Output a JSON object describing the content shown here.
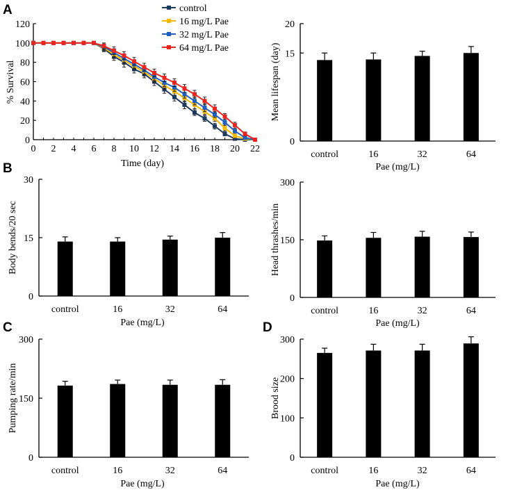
{
  "panel_letters": [
    "A",
    "B",
    "C",
    "D"
  ],
  "chart_data": [
    {
      "id": "survival",
      "type": "line",
      "title": "",
      "xlabel": "Time (day)",
      "ylabel": "% Survival",
      "xlim": [
        0,
        22
      ],
      "ylim": [
        0,
        120
      ],
      "xticks": [
        0,
        2,
        4,
        6,
        8,
        10,
        12,
        14,
        16,
        18,
        20,
        22
      ],
      "yticks": [
        0,
        20,
        40,
        60,
        80,
        100,
        120
      ],
      "legend_position": "top-center",
      "series": [
        {
          "name": "control",
          "color": "#1f3a5f",
          "x": [
            0,
            1,
            2,
            3,
            4,
            5,
            6,
            7,
            8,
            9,
            10,
            11,
            12,
            13,
            14,
            15,
            16,
            17,
            18,
            19,
            20,
            21,
            22
          ],
          "y": [
            100,
            100,
            100,
            100,
            100,
            100,
            100,
            94,
            86,
            80,
            73,
            68,
            60,
            52,
            44,
            36,
            28,
            22,
            14,
            6,
            1,
            0,
            0
          ],
          "err": [
            0,
            0,
            0,
            0,
            0,
            0,
            0,
            3,
            4,
            5,
            4,
            4,
            4,
            4,
            4,
            4,
            3,
            3,
            3,
            2,
            1,
            0,
            0
          ]
        },
        {
          "name": "16 mg/L Pae",
          "color": "#f5b800",
          "x": [
            0,
            1,
            2,
            3,
            4,
            5,
            6,
            7,
            8,
            9,
            10,
            11,
            12,
            13,
            14,
            15,
            16,
            17,
            18,
            19,
            20,
            21,
            22
          ],
          "y": [
            100,
            100,
            100,
            100,
            100,
            100,
            100,
            95,
            88,
            82,
            76,
            70,
            63,
            56,
            50,
            43,
            36,
            29,
            22,
            12,
            4,
            1,
            0
          ],
          "err": [
            0,
            0,
            0,
            0,
            0,
            0,
            0,
            3,
            4,
            4,
            4,
            4,
            4,
            4,
            4,
            4,
            4,
            3,
            3,
            3,
            2,
            1,
            0
          ]
        },
        {
          "name": "32 mg/L Pae",
          "color": "#1f5fbf",
          "x": [
            0,
            1,
            2,
            3,
            4,
            5,
            6,
            7,
            8,
            9,
            10,
            11,
            12,
            13,
            14,
            15,
            16,
            17,
            18,
            19,
            20,
            21,
            22
          ],
          "y": [
            100,
            100,
            100,
            100,
            100,
            100,
            100,
            96,
            90,
            84,
            78,
            72,
            65,
            59,
            54,
            47,
            40,
            33,
            26,
            18,
            9,
            2,
            0
          ],
          "err": [
            0,
            0,
            0,
            0,
            0,
            0,
            0,
            3,
            4,
            4,
            4,
            4,
            4,
            4,
            4,
            4,
            4,
            4,
            3,
            3,
            2,
            1,
            0
          ]
        },
        {
          "name": "64 mg/L Pae",
          "color": "#e8251f",
          "x": [
            0,
            1,
            2,
            3,
            4,
            5,
            6,
            7,
            8,
            9,
            10,
            11,
            12,
            13,
            14,
            15,
            16,
            17,
            18,
            19,
            20,
            21,
            22
          ],
          "y": [
            100,
            100,
            100,
            100,
            100,
            100,
            100,
            97,
            92,
            87,
            81,
            75,
            69,
            64,
            59,
            53,
            47,
            40,
            32,
            24,
            15,
            6,
            0
          ],
          "err": [
            0,
            0,
            0,
            0,
            0,
            0,
            0,
            3,
            4,
            4,
            4,
            4,
            4,
            4,
            4,
            4,
            4,
            4,
            4,
            3,
            3,
            2,
            0
          ]
        }
      ]
    },
    {
      "id": "lifespan",
      "type": "bar",
      "xlabel": "Pae (mg/L)",
      "ylabel": "Mean lifespan (day)",
      "categories": [
        "control",
        "16",
        "32",
        "64"
      ],
      "values": [
        13.8,
        13.9,
        14.5,
        15.0
      ],
      "errors": [
        1.2,
        1.1,
        0.8,
        1.1
      ],
      "ylim": [
        0,
        20
      ],
      "yticks": [
        0,
        15,
        20
      ]
    },
    {
      "id": "body_bends",
      "type": "bar",
      "xlabel": "Pae (mg/L)",
      "ylabel": "Body bends/20 sec",
      "categories": [
        "control",
        "16",
        "32",
        "64"
      ],
      "values": [
        14.0,
        14.0,
        14.5,
        15.0
      ],
      "errors": [
        1.2,
        1.0,
        0.9,
        1.3
      ],
      "ylim": [
        0,
        30
      ],
      "yticks": [
        0,
        15,
        30
      ]
    },
    {
      "id": "head_thrashes",
      "type": "bar",
      "xlabel": "Pae (mg/L)",
      "ylabel": "Head thrashes/min",
      "categories": [
        "control",
        "16",
        "32",
        "64"
      ],
      "values": [
        148,
        155,
        158,
        157
      ],
      "errors": [
        12,
        14,
        14,
        13
      ],
      "ylim": [
        0,
        300
      ],
      "yticks": [
        0,
        150,
        300
      ]
    },
    {
      "id": "pumping",
      "type": "bar",
      "xlabel": "Pae (mg/L)",
      "ylabel": "Pumping rate/min",
      "categories": [
        "control",
        "16",
        "32",
        "64"
      ],
      "values": [
        182,
        186,
        184,
        184
      ],
      "errors": [
        11,
        10,
        12,
        13
      ],
      "ylim": [
        0,
        300
      ],
      "yticks": [
        0,
        150,
        300
      ]
    },
    {
      "id": "brood",
      "type": "bar",
      "xlabel": "Pae (mg/L)",
      "ylabel": "Brood size",
      "categories": [
        "control",
        "16",
        "32",
        "64"
      ],
      "values": [
        265,
        271,
        271,
        289
      ],
      "errors": [
        12,
        16,
        16,
        17
      ],
      "ylim": [
        0,
        300
      ],
      "yticks": [
        0,
        100,
        200,
        300
      ]
    }
  ]
}
